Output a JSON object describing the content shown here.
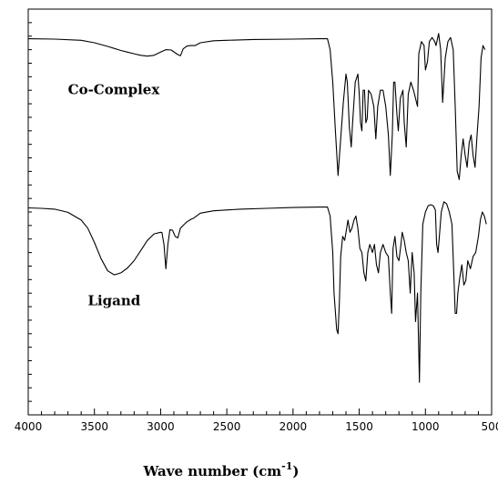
{
  "chart_data": {
    "type": "line",
    "title": "",
    "xlabel": "Wave number (cm",
    "xlabel_sup": "-1",
    "xlabel_close": ")",
    "ylabel": "",
    "xlim": [
      4000,
      500
    ],
    "x_reversed": true,
    "ylim": [
      0,
      1
    ],
    "grid": false,
    "x_ticks": [
      "4000",
      "3500",
      "3000",
      "2500",
      "2000",
      "1500",
      "1000",
      "500"
    ],
    "x_tick_values": [
      4000,
      3500,
      3000,
      2500,
      2000,
      1500,
      1000,
      500
    ],
    "series": [
      {
        "name": "Co-Complex",
        "color": "#000000",
        "points": [
          [
            4000,
            0.927
          ],
          [
            3800,
            0.926
          ],
          [
            3600,
            0.923
          ],
          [
            3500,
            0.917
          ],
          [
            3400,
            0.908
          ],
          [
            3300,
            0.898
          ],
          [
            3250,
            0.894
          ],
          [
            3200,
            0.89
          ],
          [
            3150,
            0.886
          ],
          [
            3100,
            0.884
          ],
          [
            3050,
            0.886
          ],
          [
            3000,
            0.894
          ],
          [
            2960,
            0.9
          ],
          [
            2920,
            0.899
          ],
          [
            2870,
            0.888
          ],
          [
            2850,
            0.885
          ],
          [
            2830,
            0.902
          ],
          [
            2800,
            0.909
          ],
          [
            2770,
            0.91
          ],
          [
            2740,
            0.91
          ],
          [
            2700,
            0.917
          ],
          [
            2600,
            0.922
          ],
          [
            2500,
            0.923
          ],
          [
            2300,
            0.925
          ],
          [
            2000,
            0.926
          ],
          [
            1800,
            0.927
          ],
          [
            1740,
            0.927
          ],
          [
            1720,
            0.9
          ],
          [
            1700,
            0.82
          ],
          [
            1680,
            0.7
          ],
          [
            1660,
            0.59
          ],
          [
            1640,
            0.68
          ],
          [
            1620,
            0.77
          ],
          [
            1600,
            0.84
          ],
          [
            1590,
            0.82
          ],
          [
            1575,
            0.71
          ],
          [
            1560,
            0.66
          ],
          [
            1550,
            0.72
          ],
          [
            1530,
            0.82
          ],
          [
            1510,
            0.84
          ],
          [
            1500,
            0.79
          ],
          [
            1490,
            0.72
          ],
          [
            1480,
            0.7
          ],
          [
            1470,
            0.8
          ],
          [
            1460,
            0.8
          ],
          [
            1450,
            0.72
          ],
          [
            1440,
            0.73
          ],
          [
            1430,
            0.8
          ],
          [
            1410,
            0.79
          ],
          [
            1390,
            0.76
          ],
          [
            1375,
            0.68
          ],
          [
            1360,
            0.76
          ],
          [
            1340,
            0.8
          ],
          [
            1320,
            0.8
          ],
          [
            1300,
            0.76
          ],
          [
            1280,
            0.69
          ],
          [
            1265,
            0.59
          ],
          [
            1250,
            0.69
          ],
          [
            1240,
            0.82
          ],
          [
            1230,
            0.82
          ],
          [
            1215,
            0.74
          ],
          [
            1205,
            0.7
          ],
          [
            1190,
            0.78
          ],
          [
            1170,
            0.8
          ],
          [
            1160,
            0.72
          ],
          [
            1145,
            0.66
          ],
          [
            1130,
            0.79
          ],
          [
            1110,
            0.82
          ],
          [
            1090,
            0.8
          ],
          [
            1060,
            0.76
          ],
          [
            1050,
            0.89
          ],
          [
            1030,
            0.92
          ],
          [
            1010,
            0.91
          ],
          [
            1000,
            0.85
          ],
          [
            985,
            0.87
          ],
          [
            970,
            0.92
          ],
          [
            950,
            0.93
          ],
          [
            930,
            0.92
          ],
          [
            920,
            0.91
          ],
          [
            900,
            0.94
          ],
          [
            885,
            0.9
          ],
          [
            870,
            0.77
          ],
          [
            850,
            0.88
          ],
          [
            830,
            0.92
          ],
          [
            810,
            0.93
          ],
          [
            790,
            0.9
          ],
          [
            775,
            0.76
          ],
          [
            760,
            0.6
          ],
          [
            745,
            0.58
          ],
          [
            730,
            0.64
          ],
          [
            715,
            0.68
          ],
          [
            700,
            0.64
          ],
          [
            685,
            0.61
          ],
          [
            670,
            0.67
          ],
          [
            655,
            0.69
          ],
          [
            640,
            0.64
          ],
          [
            625,
            0.61
          ],
          [
            610,
            0.69
          ],
          [
            595,
            0.76
          ],
          [
            580,
            0.88
          ],
          [
            565,
            0.91
          ],
          [
            550,
            0.9
          ]
        ]
      },
      {
        "name": "Ligand",
        "color": "#000000",
        "points": [
          [
            4000,
            0.51
          ],
          [
            3900,
            0.509
          ],
          [
            3800,
            0.507
          ],
          [
            3700,
            0.499
          ],
          [
            3600,
            0.48
          ],
          [
            3550,
            0.46
          ],
          [
            3500,
            0.425
          ],
          [
            3450,
            0.385
          ],
          [
            3400,
            0.355
          ],
          [
            3350,
            0.345
          ],
          [
            3300,
            0.35
          ],
          [
            3250,
            0.362
          ],
          [
            3200,
            0.38
          ],
          [
            3150,
            0.405
          ],
          [
            3100,
            0.43
          ],
          [
            3050,
            0.446
          ],
          [
            3000,
            0.45
          ],
          [
            2990,
            0.449
          ],
          [
            2975,
            0.42
          ],
          [
            2960,
            0.36
          ],
          [
            2945,
            0.42
          ],
          [
            2930,
            0.456
          ],
          [
            2910,
            0.455
          ],
          [
            2890,
            0.44
          ],
          [
            2870,
            0.436
          ],
          [
            2850,
            0.46
          ],
          [
            2820,
            0.47
          ],
          [
            2800,
            0.476
          ],
          [
            2770,
            0.482
          ],
          [
            2750,
            0.485
          ],
          [
            2700,
            0.497
          ],
          [
            2600,
            0.503
          ],
          [
            2400,
            0.507
          ],
          [
            2200,
            0.509
          ],
          [
            2000,
            0.511
          ],
          [
            1800,
            0.512
          ],
          [
            1740,
            0.512
          ],
          [
            1720,
            0.49
          ],
          [
            1700,
            0.4
          ],
          [
            1690,
            0.3
          ],
          [
            1670,
            0.21
          ],
          [
            1660,
            0.2
          ],
          [
            1650,
            0.28
          ],
          [
            1640,
            0.39
          ],
          [
            1625,
            0.44
          ],
          [
            1610,
            0.43
          ],
          [
            1595,
            0.46
          ],
          [
            1585,
            0.48
          ],
          [
            1570,
            0.45
          ],
          [
            1555,
            0.46
          ],
          [
            1540,
            0.48
          ],
          [
            1525,
            0.49
          ],
          [
            1510,
            0.46
          ],
          [
            1495,
            0.41
          ],
          [
            1480,
            0.4
          ],
          [
            1465,
            0.35
          ],
          [
            1450,
            0.33
          ],
          [
            1435,
            0.4
          ],
          [
            1420,
            0.42
          ],
          [
            1400,
            0.4
          ],
          [
            1385,
            0.42
          ],
          [
            1370,
            0.37
          ],
          [
            1355,
            0.35
          ],
          [
            1340,
            0.4
          ],
          [
            1320,
            0.42
          ],
          [
            1300,
            0.4
          ],
          [
            1280,
            0.39
          ],
          [
            1265,
            0.3
          ],
          [
            1255,
            0.25
          ],
          [
            1245,
            0.41
          ],
          [
            1230,
            0.44
          ],
          [
            1215,
            0.39
          ],
          [
            1200,
            0.38
          ],
          [
            1185,
            0.42
          ],
          [
            1175,
            0.45
          ],
          [
            1160,
            0.43
          ],
          [
            1145,
            0.4
          ],
          [
            1130,
            0.38
          ],
          [
            1115,
            0.3
          ],
          [
            1100,
            0.4
          ],
          [
            1085,
            0.35
          ],
          [
            1075,
            0.23
          ],
          [
            1060,
            0.3
          ],
          [
            1045,
            0.08
          ],
          [
            1035,
            0.3
          ],
          [
            1020,
            0.47
          ],
          [
            1000,
            0.5
          ],
          [
            980,
            0.515
          ],
          [
            960,
            0.518
          ],
          [
            940,
            0.515
          ],
          [
            925,
            0.505
          ],
          [
            915,
            0.42
          ],
          [
            905,
            0.4
          ],
          [
            895,
            0.44
          ],
          [
            880,
            0.5
          ],
          [
            860,
            0.525
          ],
          [
            840,
            0.52
          ],
          [
            820,
            0.5
          ],
          [
            800,
            0.47
          ],
          [
            785,
            0.34
          ],
          [
            775,
            0.25
          ],
          [
            765,
            0.25
          ],
          [
            755,
            0.3
          ],
          [
            740,
            0.34
          ],
          [
            725,
            0.37
          ],
          [
            710,
            0.32
          ],
          [
            695,
            0.33
          ],
          [
            680,
            0.38
          ],
          [
            660,
            0.36
          ],
          [
            640,
            0.39
          ],
          [
            620,
            0.4
          ],
          [
            600,
            0.44
          ],
          [
            585,
            0.48
          ],
          [
            570,
            0.5
          ],
          [
            555,
            0.49
          ],
          [
            540,
            0.47
          ]
        ]
      }
    ],
    "annotations": [
      {
        "text": "Co-Complex",
        "x": 3700,
        "y": 0.79
      },
      {
        "text": "Ligand",
        "x": 3550,
        "y": 0.27
      }
    ]
  }
}
